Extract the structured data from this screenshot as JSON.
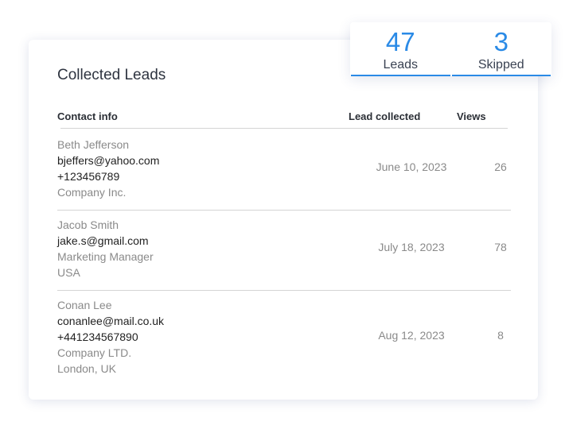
{
  "title": "Collected Leads",
  "columns": {
    "contact": "Contact info",
    "collected": "Lead collected",
    "views": "Views"
  },
  "stats": [
    {
      "value": "47",
      "label": "Leads"
    },
    {
      "value": "3",
      "label": "Skipped"
    }
  ],
  "rows": [
    {
      "name": "Beth Jefferson",
      "lines": [
        {
          "t": "bjeffers@yahoo.com",
          "dark": true
        },
        {
          "t": "+123456789",
          "dark": true
        },
        {
          "t": "Company Inc.",
          "dark": false
        }
      ],
      "date": "June 10, 2023",
      "views": "26"
    },
    {
      "name": "Jacob Smith",
      "lines": [
        {
          "t": "jake.s@gmail.com",
          "dark": true
        },
        {
          "t": "Marketing Manager",
          "dark": false
        },
        {
          "t": "USA",
          "dark": false
        }
      ],
      "date": "July 18, 2023",
      "views": "78"
    },
    {
      "name": "Conan Lee",
      "lines": [
        {
          "t": "conanlee@mail.co.uk",
          "dark": true
        },
        {
          "t": "+441234567890",
          "dark": true
        },
        {
          "t": "Company LTD.",
          "dark": false
        },
        {
          "t": "London, UK",
          "dark": false
        }
      ],
      "date": "Aug 12, 2023",
      "views": "8"
    }
  ]
}
